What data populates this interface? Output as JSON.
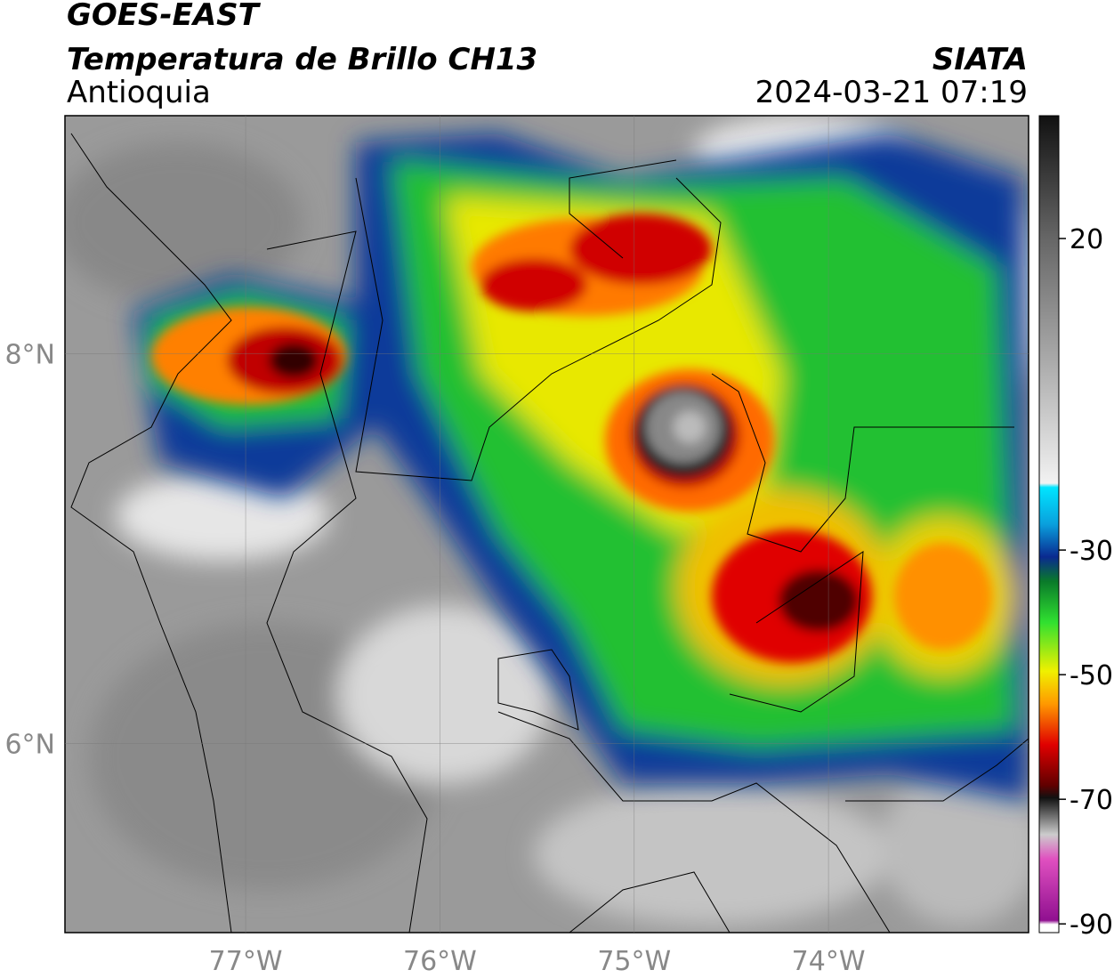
{
  "header": {
    "title": "GOES-EAST",
    "subtitle": "Temperatura de Brillo CH13",
    "region": "Antioquia",
    "source": "SIATA",
    "datetime": "2024-03-21 07:19"
  },
  "map": {
    "xlim": [
      -77.93,
      -72.97
    ],
    "ylim": [
      5.03,
      9.22
    ],
    "xticks": [
      {
        "value": -77,
        "label": "77°W"
      },
      {
        "value": -76,
        "label": "76°W"
      },
      {
        "value": -75,
        "label": "75°W"
      },
      {
        "value": -74,
        "label": "74°W"
      }
    ],
    "yticks": [
      {
        "value": 8,
        "label": "8°N"
      },
      {
        "value": 6,
        "label": "6°N"
      }
    ]
  },
  "colorbar": {
    "lim": [
      -91.4,
      40
    ],
    "ticks": [
      20,
      -30,
      -50,
      -70,
      -90
    ]
  }
}
